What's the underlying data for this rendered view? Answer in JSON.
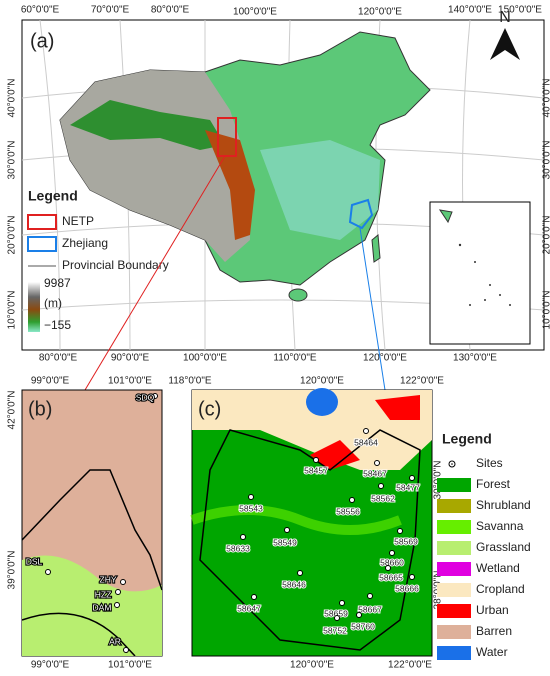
{
  "panel_a": {
    "label": "(a)",
    "north": "N",
    "top_ticks": [
      "60°0'0\"E",
      "70°0'0\"E",
      "80°0'0\"E",
      "100°0'0\"E",
      "120°0'0\"E",
      "140°0'0\"E",
      "150°0'0\"E"
    ],
    "left_ticks": [
      "40°0'0\"N",
      "30°0'0\"N",
      "20°0'0\"N",
      "10°0'0\"N"
    ],
    "right_ticks": [
      "40°0'0\"N",
      "30°0'0\"N",
      "20°0'0\"N",
      "10°0'0\"N"
    ],
    "bottom_ticks": [
      "80°0'0\"E",
      "90°0'0\"E",
      "100°0'0\"E",
      "110°0'0\"E",
      "120°0'0\"E",
      "130°0'0\"E"
    ],
    "legend": {
      "title": "Legend",
      "items": [
        {
          "label": "NETP",
          "color": "#e02020"
        },
        {
          "label": "Zhejiang",
          "color": "#1a7fe8"
        },
        {
          "label": "Provincial Boundary",
          "color": "#555555"
        }
      ],
      "elevation_max": "9987",
      "elevation_unit": "(m)",
      "elevation_min": "−155"
    }
  },
  "panel_b": {
    "label": "(b)",
    "top_ticks": [
      "99°0'0\"E",
      "101°0'0\"E"
    ],
    "bottom_ticks": [
      "99°0'0\"E",
      "101°0'0\"E"
    ],
    "left_ticks": [
      "42°0'0\"N",
      "39°0'0\"N"
    ],
    "sites": [
      "SDQ",
      "ZHY",
      "HZZ",
      "DAM",
      "DSL",
      "AR"
    ]
  },
  "panel_c": {
    "label": "(c)",
    "top_ticks": [
      "118°0'0\"E",
      "120°0'0\"E",
      "122°0'0\"E"
    ],
    "bottom_ticks": [
      "120°0'0\"E",
      "122°0'0\"E"
    ],
    "right_ticks": [
      "30°0'0\"N",
      "28°0'0\"N"
    ],
    "sites": [
      "58464",
      "58457",
      "58467",
      "58477",
      "58543",
      "58556",
      "58562",
      "58569",
      "58549",
      "58633",
      "58660",
      "58665",
      "58666",
      "58646",
      "58647",
      "58659",
      "58667",
      "58760",
      "58752"
    ],
    "legend": {
      "title": "Legend",
      "items": [
        {
          "label": "Sites",
          "color": "#ffffff"
        },
        {
          "label": "Forest",
          "color": "#00a600"
        },
        {
          "label": "Shrubland",
          "color": "#a8a800"
        },
        {
          "label": "Savanna",
          "color": "#66ee00"
        },
        {
          "label": "Grassland",
          "color": "#b8ee70"
        },
        {
          "label": "Wetland",
          "color": "#e000e0"
        },
        {
          "label": "Cropland",
          "color": "#fbe8c0"
        },
        {
          "label": "Urban",
          "color": "#ff0000"
        },
        {
          "label": "Barren",
          "color": "#deb09a"
        },
        {
          "label": "Water",
          "color": "#1a70e8"
        }
      ]
    }
  }
}
